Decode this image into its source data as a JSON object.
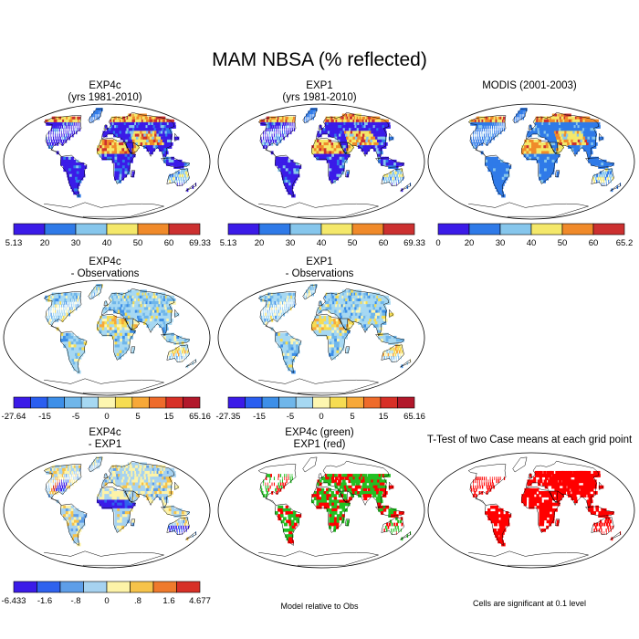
{
  "title": "MAM NBSA (% reflected)",
  "palettes": {
    "abs": [
      "#3b1be8",
      "#2f7ae8",
      "#86c6ec",
      "#f4e86a",
      "#f08a2a",
      "#cc3030"
    ],
    "diff": [
      "#3b1be8",
      "#2a5ef0",
      "#3d8fe8",
      "#6fb6ea",
      "#a6d8f2",
      "#fdf6b0",
      "#f6dc52",
      "#f7a838",
      "#ee6b2b",
      "#d73027",
      "#b2182b"
    ],
    "diff2": [
      "#3b1be8",
      "#2f62ee",
      "#5e9ee8",
      "#a6d2f0",
      "#fdf3a8",
      "#f6c34a",
      "#ef7a2c",
      "#d73027"
    ],
    "ocean": "#ffffff",
    "sig_red": "#ff0000",
    "sig_green": "#22c022"
  },
  "chart_data": [
    {
      "type": "heatmap",
      "title": "EXP4c",
      "subtitle": "(yrs 1981-2010)",
      "palette": "abs",
      "colorbar": [
        "5.13",
        "20",
        "30",
        "40",
        "50",
        "60",
        "69.33"
      ]
    },
    {
      "type": "heatmap",
      "title": "EXP1",
      "subtitle": "(yrs 1981-2010)",
      "palette": "abs",
      "colorbar": [
        "5.13",
        "20",
        "30",
        "40",
        "50",
        "60",
        "69.33"
      ]
    },
    {
      "type": "heatmap",
      "title": "MODIS (2001-2003)",
      "subtitle": "",
      "palette": "abs",
      "colorbar": [
        "0",
        "20",
        "30",
        "40",
        "50",
        "60",
        "65.2"
      ]
    },
    {
      "type": "heatmap",
      "title": "EXP4c",
      "subtitle": "- Observations",
      "palette": "diff",
      "colorbar": [
        "-27.64",
        "-15",
        "-5",
        "0",
        "5",
        "15",
        "65.16"
      ]
    },
    {
      "type": "heatmap",
      "title": "EXP1",
      "subtitle": "- Observations",
      "palette": "diff",
      "colorbar": [
        "-27.35",
        "-15",
        "-5",
        "0",
        "5",
        "15",
        "65.16"
      ]
    },
    {
      "type": "heatmap",
      "title": "EXP4c",
      "subtitle": "- EXP1",
      "palette": "diff2",
      "colorbar": [
        "-6.433",
        "-1.6",
        "-.8",
        "0",
        ".8",
        "1.6",
        "4.677"
      ]
    },
    {
      "type": "heatmap",
      "title": "EXP4c (green)",
      "subtitle": "EXP1 (red)",
      "palette": "sig",
      "note": "Model relative to Obs"
    },
    {
      "type": "heatmap",
      "title": "T-Test of two Case means at each grid point",
      "subtitle": "",
      "palette": "sigred",
      "note": "Cells are significant at 0.1 level"
    }
  ]
}
